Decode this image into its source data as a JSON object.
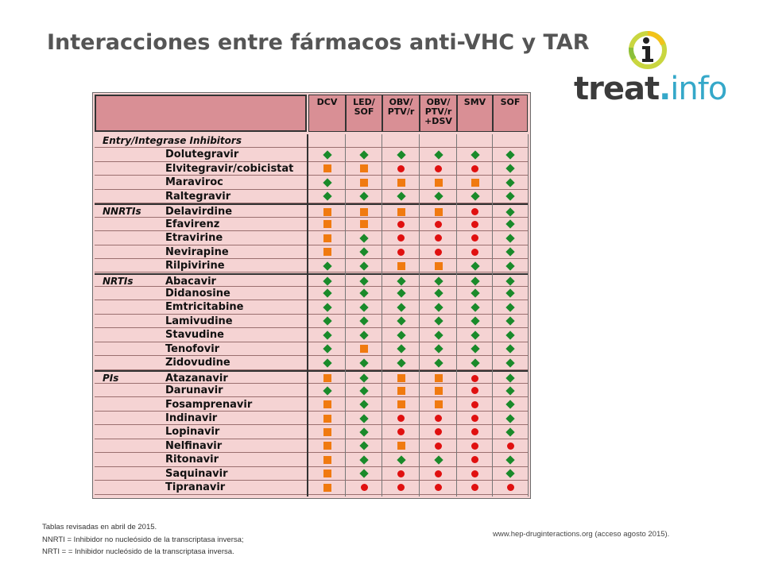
{
  "title": "Interacciones entre fármacos anti-VHC y TAR",
  "logo": {
    "part1": "treat",
    "dot": ".",
    "part2": "info",
    "icon": "info-i-icon"
  },
  "table": {
    "columns": [
      "DCV",
      "LED/\nSOF",
      "OBV/\nPTV/r",
      "OBV/\nPTV/r\n+DSV",
      "SMV",
      "SOF"
    ],
    "legend_colors": {
      "green": "#1a8a2a",
      "orange": "#f07a10",
      "red": "#e01010"
    },
    "rows": [
      {
        "category": "Entry/Integrase Inhibitors",
        "drug": "",
        "marks": []
      },
      {
        "category": "",
        "drug": "Dolutegravir",
        "marks": [
          "g",
          "g",
          "g",
          "g",
          "g",
          "g"
        ]
      },
      {
        "category": "",
        "drug": "Elvitegravir/cobicistat",
        "marks": [
          "o",
          "o",
          "r",
          "r",
          "r",
          "g"
        ]
      },
      {
        "category": "",
        "drug": "Maraviroc",
        "marks": [
          "g",
          "o",
          "o",
          "o",
          "o",
          "g"
        ]
      },
      {
        "category": "",
        "drug": "Raltegravir",
        "marks": [
          "g",
          "g",
          "g",
          "g",
          "g",
          "g"
        ]
      },
      {
        "category": "NNRTIs",
        "drug": "Delavirdine",
        "marks": [
          "o",
          "o",
          "o",
          "o",
          "r",
          "g"
        ]
      },
      {
        "category": "",
        "drug": "Efavirenz",
        "marks": [
          "o",
          "o",
          "r",
          "r",
          "r",
          "g"
        ]
      },
      {
        "category": "",
        "drug": "Etravirine",
        "marks": [
          "o",
          "g",
          "r",
          "r",
          "r",
          "g"
        ]
      },
      {
        "category": "",
        "drug": "Nevirapine",
        "marks": [
          "o",
          "g",
          "r",
          "r",
          "r",
          "g"
        ]
      },
      {
        "category": "",
        "drug": "Rilpivirine",
        "marks": [
          "g",
          "g",
          "o",
          "o",
          "g",
          "g"
        ]
      },
      {
        "category": "NRTIs",
        "drug": "Abacavir",
        "marks": [
          "g",
          "g",
          "g",
          "g",
          "g",
          "g"
        ]
      },
      {
        "category": "",
        "drug": "Didanosine",
        "marks": [
          "g",
          "g",
          "g",
          "g",
          "g",
          "g"
        ]
      },
      {
        "category": "",
        "drug": "Emtricitabine",
        "marks": [
          "g",
          "g",
          "g",
          "g",
          "g",
          "g"
        ]
      },
      {
        "category": "",
        "drug": "Lamivudine",
        "marks": [
          "g",
          "g",
          "g",
          "g",
          "g",
          "g"
        ]
      },
      {
        "category": "",
        "drug": "Stavudine",
        "marks": [
          "g",
          "g",
          "g",
          "g",
          "g",
          "g"
        ]
      },
      {
        "category": "",
        "drug": "Tenofovir",
        "marks": [
          "g",
          "o",
          "g",
          "g",
          "g",
          "g"
        ]
      },
      {
        "category": "",
        "drug": "Zidovudine",
        "marks": [
          "g",
          "g",
          "g",
          "g",
          "g",
          "g"
        ]
      },
      {
        "category": "PIs",
        "drug": "Atazanavir",
        "marks": [
          "o",
          "g",
          "o",
          "o",
          "r",
          "g"
        ]
      },
      {
        "category": "",
        "drug": "Darunavir",
        "marks": [
          "g",
          "g",
          "o",
          "o",
          "r",
          "g"
        ]
      },
      {
        "category": "",
        "drug": "Fosamprenavir",
        "marks": [
          "o",
          "g",
          "o",
          "o",
          "r",
          "g"
        ]
      },
      {
        "category": "",
        "drug": "Indinavir",
        "marks": [
          "o",
          "g",
          "r",
          "r",
          "r",
          "g"
        ]
      },
      {
        "category": "",
        "drug": "Lopinavir",
        "marks": [
          "o",
          "g",
          "r",
          "r",
          "r",
          "g"
        ]
      },
      {
        "category": "",
        "drug": "Nelfinavir",
        "marks": [
          "o",
          "g",
          "o",
          "r",
          "r",
          "r"
        ]
      },
      {
        "category": "",
        "drug": "Ritonavir",
        "marks": [
          "o",
          "g",
          "g",
          "g",
          "r",
          "g"
        ]
      },
      {
        "category": "",
        "drug": "Saquinavir",
        "marks": [
          "o",
          "g",
          "r",
          "r",
          "r",
          "g"
        ]
      },
      {
        "category": "",
        "drug": "Tipranavir",
        "marks": [
          "o",
          "r",
          "r",
          "r",
          "r",
          "r"
        ]
      }
    ]
  },
  "footnote": {
    "line1": "Tablas revisadas en abril de 2015.",
    "line2": "NNRTI = Inhibidor no nucleósido de la transcriptasa inversa;",
    "line3": "NRTI = = Inhibidor nucleósido de la transcriptasa inversa."
  },
  "source": "www.hep-druginteractions.org (acceso agosto 2015)."
}
